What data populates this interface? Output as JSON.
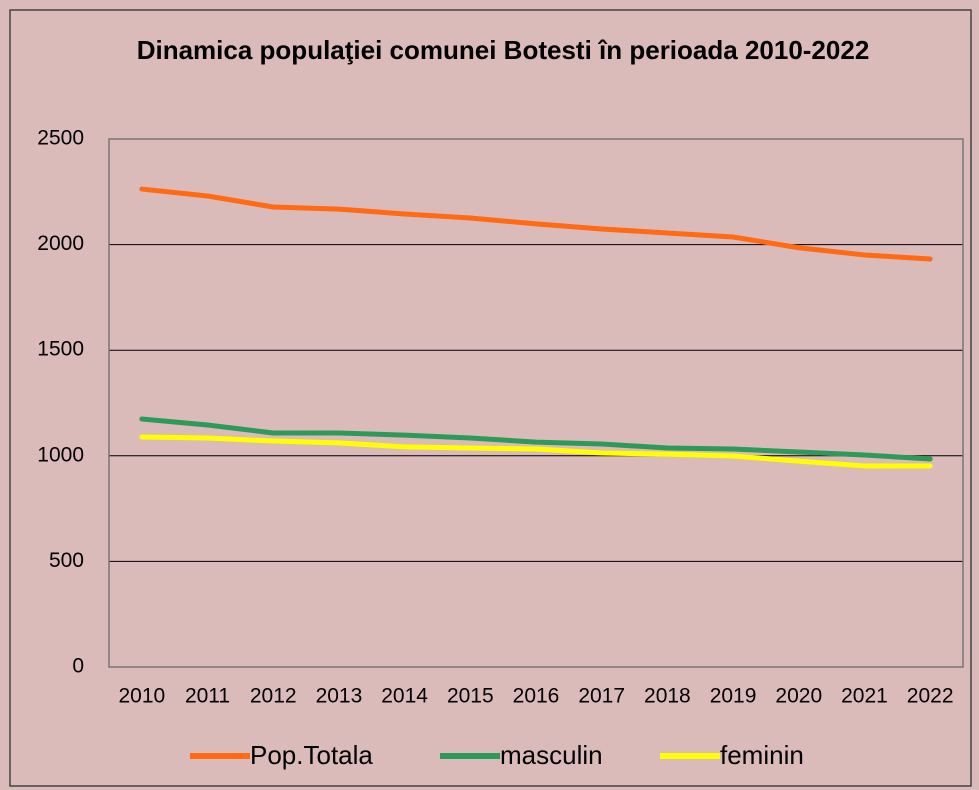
{
  "chart_data": {
    "type": "line",
    "title": "Dinamica populaţiei comunei Botesti în perioada 2010-2022",
    "categories": [
      "2010",
      "2011",
      "2012",
      "2013",
      "2014",
      "2015",
      "2016",
      "2017",
      "2018",
      "2019",
      "2020",
      "2021",
      "2022"
    ],
    "series": [
      {
        "name": "Pop.Totala",
        "color": "#ff6a13",
        "values": [
          2263,
          2230,
          2178,
          2168,
          2145,
          2126,
          2098,
          2074,
          2055,
          2036,
          1985,
          1951,
          1932
        ]
      },
      {
        "name": "masculin",
        "color": "#2e9a5a",
        "values": [
          1174,
          1146,
          1108,
          1108,
          1098,
          1084,
          1065,
          1056,
          1037,
          1032,
          1018,
          1004,
          985
        ]
      },
      {
        "name": "feminin",
        "color": "#ffff00",
        "values": [
          1089,
          1084,
          1070,
          1061,
          1042,
          1037,
          1032,
          1013,
          1008,
          999,
          975,
          952,
          952
        ]
      }
    ],
    "ylim": [
      0,
      2500
    ],
    "yticks": [
      0,
      500,
      1000,
      1500,
      2000,
      2500
    ],
    "grid": true,
    "legend": "bottom"
  }
}
